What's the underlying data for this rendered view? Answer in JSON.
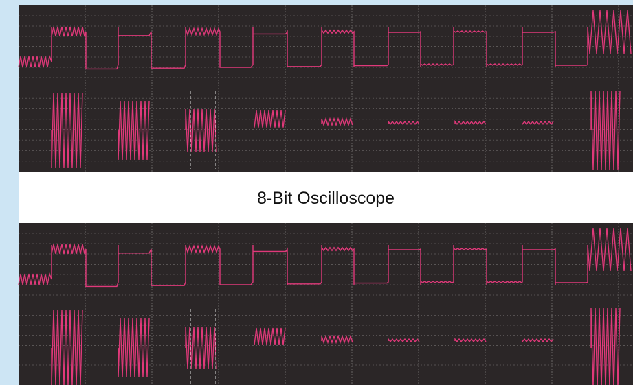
{
  "label": "8-Bit Oscilloscope"
}
